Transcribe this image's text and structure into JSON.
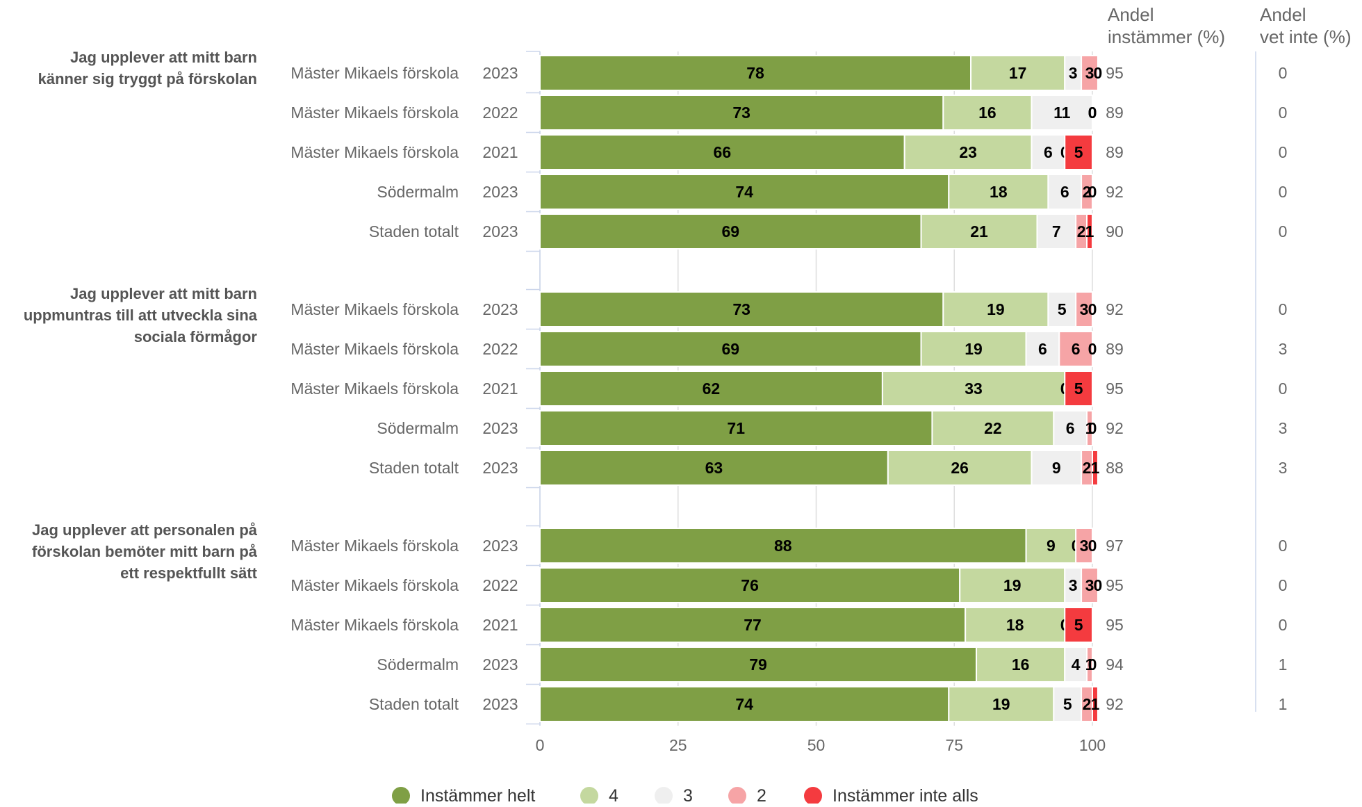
{
  "chart_data": {
    "type": "bar",
    "orientation": "horizontal",
    "stacked": true,
    "xlim": [
      0,
      100
    ],
    "x_ticks": [
      0,
      25,
      50,
      75,
      100
    ],
    "grid": true,
    "legend_position": "bottom",
    "column_headers": {
      "agree": [
        "Andel",
        "instämmer (%)"
      ],
      "dont_know": [
        "Andel",
        "vet inte (%)"
      ]
    },
    "series": [
      {
        "name": "Instämmer helt",
        "color": "#7f9f45"
      },
      {
        "name": "4",
        "color": "#c4d89f"
      },
      {
        "name": "3",
        "color": "#efefef"
      },
      {
        "name": "2",
        "color": "#f6a4a6"
      },
      {
        "name": "Instämmer inte alls",
        "color": "#f43b3f"
      }
    ],
    "groups": [
      {
        "question": [
          "Jag upplever att mitt barn",
          "känner sig tryggt på förskolan"
        ],
        "rows": [
          {
            "unit": "Mäster Mikaels förskola",
            "year": "2023",
            "values": [
              78,
              17,
              3,
              3,
              0
            ],
            "agree": "95",
            "dont_know": "0"
          },
          {
            "unit": "Mäster Mikaels förskola",
            "year": "2022",
            "values": [
              73,
              16,
              11,
              0,
              0
            ],
            "agree": "89",
            "dont_know": "0"
          },
          {
            "unit": "Mäster Mikaels förskola",
            "year": "2021",
            "values": [
              66,
              23,
              6,
              0,
              5
            ],
            "agree": "89",
            "dont_know": "0"
          },
          {
            "unit": "Södermalm",
            "year": "2023",
            "values": [
              74,
              18,
              6,
              2,
              0
            ],
            "agree": "92",
            "dont_know": "0"
          },
          {
            "unit": "Staden totalt",
            "year": "2023",
            "values": [
              69,
              21,
              7,
              2,
              1
            ],
            "agree": "90",
            "dont_know": "0"
          }
        ]
      },
      {
        "question": [
          "Jag upplever att mitt barn",
          "uppmuntras till att utveckla sina",
          "sociala förmågor"
        ],
        "rows": [
          {
            "unit": "Mäster Mikaels förskola",
            "year": "2023",
            "values": [
              73,
              19,
              5,
              3,
              0
            ],
            "agree": "92",
            "dont_know": "0"
          },
          {
            "unit": "Mäster Mikaels förskola",
            "year": "2022",
            "values": [
              69,
              19,
              6,
              6,
              0
            ],
            "agree": "89",
            "dont_know": "3"
          },
          {
            "unit": "Mäster Mikaels förskola",
            "year": "2021",
            "values": [
              62,
              33,
              0,
              0,
              5
            ],
            "agree": "95",
            "dont_know": "0"
          },
          {
            "unit": "Södermalm",
            "year": "2023",
            "values": [
              71,
              22,
              6,
              1,
              0
            ],
            "agree": "92",
            "dont_know": "3"
          },
          {
            "unit": "Staden totalt",
            "year": "2023",
            "values": [
              63,
              26,
              9,
              2,
              1
            ],
            "agree": "88",
            "dont_know": "3"
          }
        ]
      },
      {
        "question": [
          "Jag upplever att personalen på",
          "förskolan bemöter mitt barn på",
          "ett respektfullt sätt"
        ],
        "rows": [
          {
            "unit": "Mäster Mikaels förskola",
            "year": "2023",
            "values": [
              88,
              9,
              0,
              3,
              0
            ],
            "agree": "97",
            "dont_know": "0"
          },
          {
            "unit": "Mäster Mikaels förskola",
            "year": "2022",
            "values": [
              76,
              19,
              3,
              3,
              0
            ],
            "agree": "95",
            "dont_know": "0"
          },
          {
            "unit": "Mäster Mikaels förskola",
            "year": "2021",
            "values": [
              77,
              18,
              0,
              0,
              5
            ],
            "agree": "95",
            "dont_know": "0"
          },
          {
            "unit": "Södermalm",
            "year": "2023",
            "values": [
              79,
              16,
              4,
              1,
              0
            ],
            "agree": "94",
            "dont_know": "1"
          },
          {
            "unit": "Staden totalt",
            "year": "2023",
            "values": [
              74,
              19,
              5,
              2,
              1
            ],
            "agree": "92",
            "dont_know": "1"
          }
        ]
      }
    ]
  }
}
